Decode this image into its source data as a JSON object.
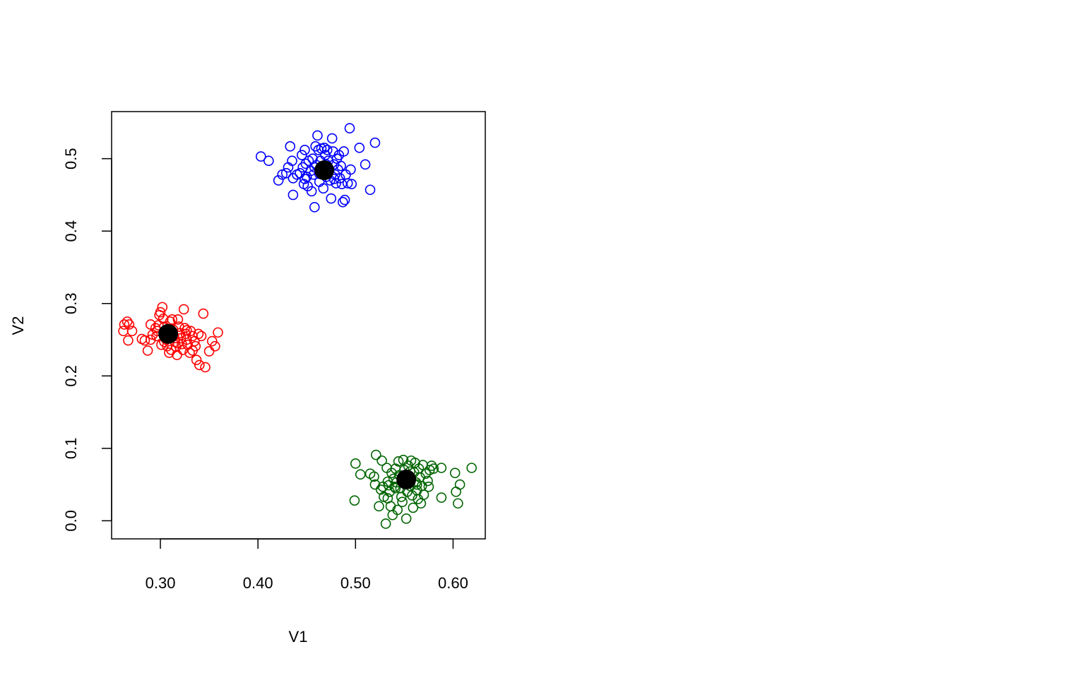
{
  "chart_data": {
    "type": "scatter",
    "title": "",
    "xlabel": "V1",
    "ylabel": "V2",
    "xlim": [
      0.25,
      0.633
    ],
    "ylim": [
      -0.025,
      0.565
    ],
    "xticks": [
      0.3,
      0.4,
      0.5,
      0.6
    ],
    "xtick_labels": [
      "0.30",
      "0.40",
      "0.50",
      "0.60"
    ],
    "yticks": [
      0.0,
      0.1,
      0.2,
      0.3,
      0.4,
      0.5
    ],
    "ytick_labels": [
      "0.0",
      "0.1",
      "0.2",
      "0.3",
      "0.4",
      "0.5"
    ],
    "grid": false,
    "legend": "none",
    "series": [
      {
        "color": "#ff0000",
        "marker": "open-circle",
        "points": [
          [
            0.266,
            0.275
          ],
          [
            0.263,
            0.271
          ],
          [
            0.268,
            0.271
          ],
          [
            0.262,
            0.262
          ],
          [
            0.271,
            0.262
          ],
          [
            0.267,
            0.249
          ],
          [
            0.281,
            0.251
          ],
          [
            0.284,
            0.249
          ],
          [
            0.287,
            0.235
          ],
          [
            0.29,
            0.271
          ],
          [
            0.292,
            0.257
          ],
          [
            0.295,
            0.266
          ],
          [
            0.298,
            0.27
          ],
          [
            0.299,
            0.284
          ],
          [
            0.3,
            0.288
          ],
          [
            0.302,
            0.295
          ],
          [
            0.303,
            0.279
          ],
          [
            0.304,
            0.268
          ],
          [
            0.305,
            0.262
          ],
          [
            0.306,
            0.25
          ],
          [
            0.307,
            0.241
          ],
          [
            0.309,
            0.232
          ],
          [
            0.31,
            0.275
          ],
          [
            0.312,
            0.278
          ],
          [
            0.313,
            0.264
          ],
          [
            0.314,
            0.255
          ],
          [
            0.315,
            0.247
          ],
          [
            0.316,
            0.24
          ],
          [
            0.317,
            0.229
          ],
          [
            0.318,
            0.278
          ],
          [
            0.319,
            0.268
          ],
          [
            0.32,
            0.259
          ],
          [
            0.321,
            0.252
          ],
          [
            0.322,
            0.244
          ],
          [
            0.323,
            0.236
          ],
          [
            0.324,
            0.292
          ],
          [
            0.325,
            0.266
          ],
          [
            0.326,
            0.258
          ],
          [
            0.327,
            0.25
          ],
          [
            0.328,
            0.243
          ],
          [
            0.33,
            0.232
          ],
          [
            0.331,
            0.262
          ],
          [
            0.333,
            0.255
          ],
          [
            0.335,
            0.248
          ],
          [
            0.336,
            0.241
          ],
          [
            0.337,
            0.222
          ],
          [
            0.339,
            0.258
          ],
          [
            0.34,
            0.215
          ],
          [
            0.342,
            0.255
          ],
          [
            0.344,
            0.286
          ],
          [
            0.346,
            0.212
          ],
          [
            0.35,
            0.234
          ],
          [
            0.353,
            0.248
          ],
          [
            0.356,
            0.241
          ],
          [
            0.359,
            0.26
          ],
          [
            0.296,
            0.255
          ],
          [
            0.301,
            0.243
          ],
          [
            0.308,
            0.253
          ],
          [
            0.311,
            0.236
          ],
          [
            0.318,
            0.245
          ],
          [
            0.327,
            0.263
          ],
          [
            0.333,
            0.235
          ],
          [
            0.29,
            0.25
          ],
          [
            0.297,
            0.262
          ],
          [
            0.304,
            0.247
          ],
          [
            0.312,
            0.258
          ]
        ]
      },
      {
        "color": "#0000ff",
        "marker": "open-circle",
        "points": [
          [
            0.403,
            0.503
          ],
          [
            0.411,
            0.497
          ],
          [
            0.421,
            0.47
          ],
          [
            0.425,
            0.478
          ],
          [
            0.429,
            0.48
          ],
          [
            0.431,
            0.488
          ],
          [
            0.433,
            0.517
          ],
          [
            0.435,
            0.497
          ],
          [
            0.436,
            0.473
          ],
          [
            0.436,
            0.45
          ],
          [
            0.44,
            0.478
          ],
          [
            0.443,
            0.48
          ],
          [
            0.445,
            0.505
          ],
          [
            0.446,
            0.488
          ],
          [
            0.447,
            0.465
          ],
          [
            0.448,
            0.512
          ],
          [
            0.449,
            0.493
          ],
          [
            0.45,
            0.475
          ],
          [
            0.451,
            0.462
          ],
          [
            0.452,
            0.497
          ],
          [
            0.454,
            0.483
          ],
          [
            0.455,
            0.455
          ],
          [
            0.456,
            0.5
          ],
          [
            0.457,
            0.478
          ],
          [
            0.458,
            0.433
          ],
          [
            0.459,
            0.517
          ],
          [
            0.46,
            0.491
          ],
          [
            0.461,
            0.532
          ],
          [
            0.462,
            0.512
          ],
          [
            0.463,
            0.468
          ],
          [
            0.464,
            0.497
          ],
          [
            0.465,
            0.514
          ],
          [
            0.466,
            0.483
          ],
          [
            0.467,
            0.459
          ],
          [
            0.468,
            0.515
          ],
          [
            0.469,
            0.505
          ],
          [
            0.47,
            0.475
          ],
          [
            0.471,
            0.512
          ],
          [
            0.472,
            0.497
          ],
          [
            0.473,
            0.485
          ],
          [
            0.474,
            0.47
          ],
          [
            0.475,
            0.445
          ],
          [
            0.476,
            0.528
          ],
          [
            0.477,
            0.51
          ],
          [
            0.478,
            0.492
          ],
          [
            0.479,
            0.478
          ],
          [
            0.48,
            0.466
          ],
          [
            0.481,
            0.5
          ],
          [
            0.482,
            0.485
          ],
          [
            0.483,
            0.505
          ],
          [
            0.484,
            0.473
          ],
          [
            0.485,
            0.49
          ],
          [
            0.486,
            0.465
          ],
          [
            0.487,
            0.44
          ],
          [
            0.488,
            0.51
          ],
          [
            0.489,
            0.443
          ],
          [
            0.49,
            0.478
          ],
          [
            0.492,
            0.466
          ],
          [
            0.494,
            0.542
          ],
          [
            0.495,
            0.485
          ],
          [
            0.496,
            0.465
          ],
          [
            0.504,
            0.515
          ],
          [
            0.51,
            0.492
          ],
          [
            0.515,
            0.457
          ],
          [
            0.52,
            0.522
          ],
          [
            0.448,
            0.472
          ],
          [
            0.458,
            0.488
          ],
          [
            0.463,
            0.479
          ],
          [
            0.47,
            0.492
          ],
          [
            0.478,
            0.472
          ]
        ]
      },
      {
        "color": "#006400",
        "marker": "open-circle",
        "points": [
          [
            0.499,
            0.028
          ],
          [
            0.5,
            0.079
          ],
          [
            0.505,
            0.064
          ],
          [
            0.515,
            0.065
          ],
          [
            0.519,
            0.061
          ],
          [
            0.52,
            0.05
          ],
          [
            0.521,
            0.091
          ],
          [
            0.524,
            0.02
          ],
          [
            0.526,
            0.043
          ],
          [
            0.527,
            0.083
          ],
          [
            0.528,
            0.047
          ],
          [
            0.529,
            0.033
          ],
          [
            0.531,
            -0.004
          ],
          [
            0.532,
            0.073
          ],
          [
            0.533,
            0.054
          ],
          [
            0.534,
            0.049
          ],
          [
            0.535,
            0.04
          ],
          [
            0.536,
            0.02
          ],
          [
            0.537,
            0.066
          ],
          [
            0.538,
            0.008
          ],
          [
            0.539,
            0.058
          ],
          [
            0.54,
            0.047
          ],
          [
            0.541,
            0.072
          ],
          [
            0.542,
            0.053
          ],
          [
            0.543,
            0.015
          ],
          [
            0.544,
            0.082
          ],
          [
            0.545,
            0.063
          ],
          [
            0.546,
            0.045
          ],
          [
            0.547,
            0.033
          ],
          [
            0.548,
            0.026
          ],
          [
            0.549,
            0.084
          ],
          [
            0.55,
            0.07
          ],
          [
            0.551,
            0.055
          ],
          [
            0.552,
            0.003
          ],
          [
            0.553,
            0.04
          ],
          [
            0.554,
            0.076
          ],
          [
            0.555,
            0.06
          ],
          [
            0.556,
            0.048
          ],
          [
            0.557,
            0.083
          ],
          [
            0.558,
            0.035
          ],
          [
            0.559,
            0.018
          ],
          [
            0.56,
            0.067
          ],
          [
            0.561,
            0.08
          ],
          [
            0.562,
            0.053
          ],
          [
            0.563,
            0.042
          ],
          [
            0.564,
            0.03
          ],
          [
            0.565,
            0.072
          ],
          [
            0.566,
            0.06
          ],
          [
            0.567,
            0.024
          ],
          [
            0.568,
            0.048
          ],
          [
            0.569,
            0.077
          ],
          [
            0.57,
            0.036
          ],
          [
            0.572,
            0.065
          ],
          [
            0.574,
            0.055
          ],
          [
            0.575,
            0.047
          ],
          [
            0.576,
            0.07
          ],
          [
            0.578,
            0.076
          ],
          [
            0.58,
            0.072
          ],
          [
            0.588,
            0.032
          ],
          [
            0.588,
            0.073
          ],
          [
            0.602,
            0.066
          ],
          [
            0.603,
            0.04
          ],
          [
            0.605,
            0.024
          ],
          [
            0.607,
            0.05
          ],
          [
            0.619,
            0.073
          ],
          [
            0.533,
            0.031
          ],
          [
            0.541,
            0.045
          ],
          [
            0.548,
            0.06
          ],
          [
            0.556,
            0.068
          ],
          [
            0.563,
            0.05
          ]
        ]
      }
    ],
    "centroids": {
      "color": "#000000",
      "marker": "filled-circle",
      "points": [
        [
          0.308,
          0.258
        ],
        [
          0.468,
          0.484
        ],
        [
          0.552,
          0.057
        ]
      ]
    }
  }
}
